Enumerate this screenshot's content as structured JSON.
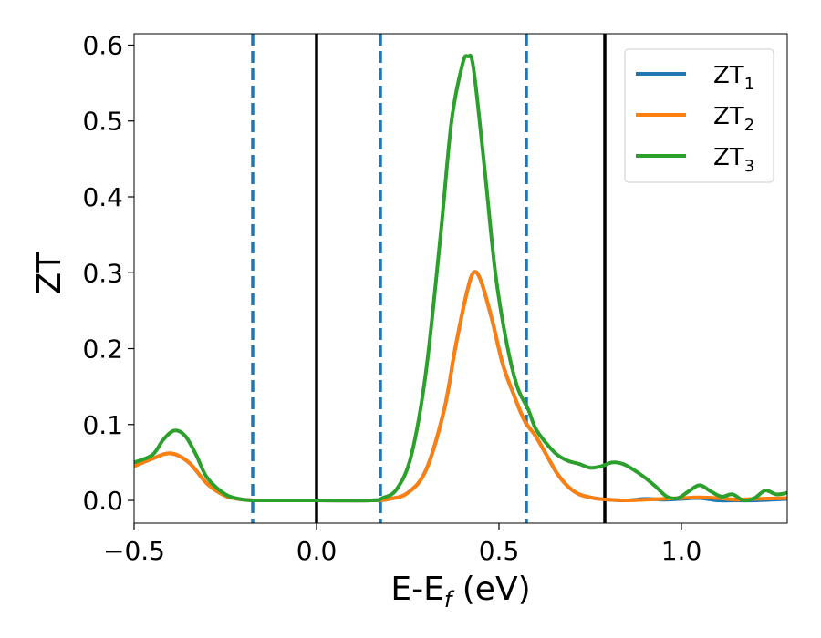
{
  "chart_data": {
    "type": "line",
    "title": "",
    "xlabel": {
      "main": "E-E",
      "sub": "f",
      "suffix": " (eV)"
    },
    "ylabel": "ZT",
    "xlim": [
      -0.5,
      1.29
    ],
    "ylim": [
      -0.03,
      0.615
    ],
    "x_ticks": [
      -0.5,
      0.0,
      0.5,
      1.0
    ],
    "x_tick_labels": [
      "−0.5",
      "0.0",
      "0.5",
      "1.0"
    ],
    "y_ticks": [
      0.0,
      0.1,
      0.2,
      0.3,
      0.4,
      0.5,
      0.6
    ],
    "y_tick_labels": [
      "0.0",
      "0.1",
      "0.2",
      "0.3",
      "0.4",
      "0.5",
      "0.6"
    ],
    "grid": false,
    "legend_position": "top-right",
    "vertical_lines": [
      {
        "x": -0.175,
        "style": "dashed",
        "color": "#1f77b4"
      },
      {
        "x": 0.0,
        "style": "solid",
        "color": "#000000"
      },
      {
        "x": 0.175,
        "style": "dashed",
        "color": "#1f77b4"
      },
      {
        "x": 0.575,
        "style": "dashed",
        "color": "#1f77b4"
      },
      {
        "x": 0.79,
        "style": "solid",
        "color": "#000000"
      }
    ],
    "series": [
      {
        "name": "ZT",
        "sub": "1",
        "color": "#1f77b4",
        "points": [
          [
            -0.5,
            0.045
          ],
          [
            -0.45,
            0.055
          ],
          [
            -0.4,
            0.062
          ],
          [
            -0.35,
            0.05
          ],
          [
            -0.3,
            0.022
          ],
          [
            -0.25,
            0.006
          ],
          [
            -0.2,
            0.001
          ],
          [
            -0.15,
            0.0
          ],
          [
            0.0,
            0.0
          ],
          [
            0.15,
            0.0
          ],
          [
            0.2,
            0.002
          ],
          [
            0.25,
            0.01
          ],
          [
            0.3,
            0.04
          ],
          [
            0.35,
            0.12
          ],
          [
            0.38,
            0.2
          ],
          [
            0.41,
            0.27
          ],
          [
            0.43,
            0.3
          ],
          [
            0.45,
            0.29
          ],
          [
            0.48,
            0.24
          ],
          [
            0.51,
            0.18
          ],
          [
            0.54,
            0.14
          ],
          [
            0.57,
            0.105
          ],
          [
            0.6,
            0.085
          ],
          [
            0.63,
            0.06
          ],
          [
            0.66,
            0.035
          ],
          [
            0.69,
            0.018
          ],
          [
            0.72,
            0.008
          ],
          [
            0.76,
            0.003
          ],
          [
            0.8,
            0.001
          ],
          [
            0.85,
            0.0
          ],
          [
            0.9,
            0.002
          ],
          [
            0.95,
            0.001
          ],
          [
            1.0,
            0.002
          ],
          [
            1.05,
            0.003
          ],
          [
            1.1,
            0.0
          ],
          [
            1.15,
            0.0
          ],
          [
            1.2,
            0.0
          ],
          [
            1.29,
            0.002
          ]
        ]
      },
      {
        "name": "ZT",
        "sub": "2",
        "color": "#ff7f0e",
        "points": [
          [
            -0.5,
            0.045
          ],
          [
            -0.45,
            0.055
          ],
          [
            -0.4,
            0.062
          ],
          [
            -0.35,
            0.05
          ],
          [
            -0.3,
            0.022
          ],
          [
            -0.25,
            0.006
          ],
          [
            -0.2,
            0.001
          ],
          [
            -0.15,
            0.0
          ],
          [
            0.0,
            0.0
          ],
          [
            0.15,
            0.0
          ],
          [
            0.2,
            0.002
          ],
          [
            0.25,
            0.01
          ],
          [
            0.3,
            0.04
          ],
          [
            0.35,
            0.12
          ],
          [
            0.38,
            0.2
          ],
          [
            0.41,
            0.27
          ],
          [
            0.43,
            0.3
          ],
          [
            0.45,
            0.29
          ],
          [
            0.48,
            0.24
          ],
          [
            0.51,
            0.18
          ],
          [
            0.54,
            0.14
          ],
          [
            0.57,
            0.105
          ],
          [
            0.6,
            0.085
          ],
          [
            0.63,
            0.06
          ],
          [
            0.66,
            0.035
          ],
          [
            0.69,
            0.018
          ],
          [
            0.72,
            0.008
          ],
          [
            0.76,
            0.003
          ],
          [
            0.8,
            0.001
          ],
          [
            0.85,
            0.0
          ],
          [
            0.9,
            0.001
          ],
          [
            0.95,
            0.002
          ],
          [
            1.0,
            0.003
          ],
          [
            1.05,
            0.004
          ],
          [
            1.1,
            0.003
          ],
          [
            1.15,
            0.001
          ],
          [
            1.2,
            0.002
          ],
          [
            1.29,
            0.003
          ]
        ]
      },
      {
        "name": "ZT",
        "sub": "3",
        "color": "#2ca02c",
        "points": [
          [
            -0.5,
            0.05
          ],
          [
            -0.45,
            0.06
          ],
          [
            -0.42,
            0.08
          ],
          [
            -0.39,
            0.092
          ],
          [
            -0.36,
            0.085
          ],
          [
            -0.33,
            0.06
          ],
          [
            -0.3,
            0.03
          ],
          [
            -0.25,
            0.008
          ],
          [
            -0.2,
            0.001
          ],
          [
            -0.15,
            0.0
          ],
          [
            0.0,
            0.0
          ],
          [
            0.15,
            0.0
          ],
          [
            0.18,
            0.003
          ],
          [
            0.22,
            0.015
          ],
          [
            0.26,
            0.06
          ],
          [
            0.3,
            0.17
          ],
          [
            0.34,
            0.35
          ],
          [
            0.37,
            0.5
          ],
          [
            0.4,
            0.575
          ],
          [
            0.415,
            0.585
          ],
          [
            0.43,
            0.57
          ],
          [
            0.46,
            0.44
          ],
          [
            0.49,
            0.3
          ],
          [
            0.52,
            0.21
          ],
          [
            0.55,
            0.15
          ],
          [
            0.58,
            0.12
          ],
          [
            0.6,
            0.095
          ],
          [
            0.63,
            0.075
          ],
          [
            0.66,
            0.06
          ],
          [
            0.69,
            0.052
          ],
          [
            0.72,
            0.048
          ],
          [
            0.75,
            0.043
          ],
          [
            0.78,
            0.045
          ],
          [
            0.81,
            0.05
          ],
          [
            0.84,
            0.048
          ],
          [
            0.87,
            0.04
          ],
          [
            0.9,
            0.03
          ],
          [
            0.93,
            0.018
          ],
          [
            0.96,
            0.005
          ],
          [
            0.99,
            0.003
          ],
          [
            1.02,
            0.012
          ],
          [
            1.05,
            0.02
          ],
          [
            1.08,
            0.012
          ],
          [
            1.11,
            0.005
          ],
          [
            1.14,
            0.008
          ],
          [
            1.17,
            0.0
          ],
          [
            1.2,
            0.003
          ],
          [
            1.23,
            0.013
          ],
          [
            1.26,
            0.008
          ],
          [
            1.29,
            0.01
          ]
        ]
      }
    ]
  }
}
